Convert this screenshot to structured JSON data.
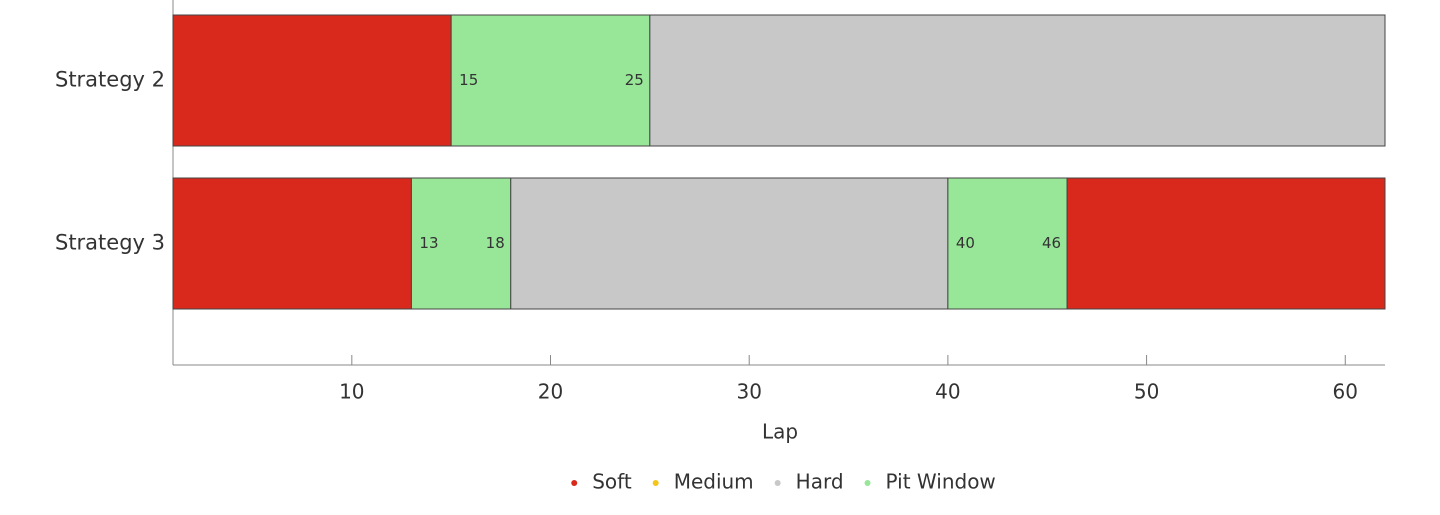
{
  "chart_data": {
    "type": "timeline",
    "x_label": "Lap",
    "xlim": [
      1,
      62
    ],
    "xticks": [
      10,
      20,
      30,
      40,
      50,
      60
    ],
    "series": [
      {
        "name": "Soft",
        "color": "#d9291c"
      },
      {
        "name": "Medium",
        "color": "#f5c518"
      },
      {
        "name": "Hard",
        "color": "#c8c8c8"
      },
      {
        "name": "Pit Window",
        "color": "#98e698"
      }
    ],
    "rows": [
      {
        "label": "Strategy 2",
        "segments": [
          {
            "compound": "Soft",
            "start": 1,
            "end": 15
          },
          {
            "compound": "Pit Window",
            "start": 15,
            "end": 25
          },
          {
            "compound": "Hard",
            "start": 25,
            "end": 62
          }
        ]
      },
      {
        "label": "Strategy 3",
        "segments": [
          {
            "compound": "Soft",
            "start": 1,
            "end": 13
          },
          {
            "compound": "Pit Window",
            "start": 13,
            "end": 18
          },
          {
            "compound": "Hard",
            "start": 18,
            "end": 40
          },
          {
            "compound": "Pit Window",
            "start": 40,
            "end": 46
          },
          {
            "compound": "Soft",
            "start": 46,
            "end": 62
          }
        ]
      }
    ],
    "labeled_compound": "Pit Window",
    "legend_position": "bottom"
  }
}
